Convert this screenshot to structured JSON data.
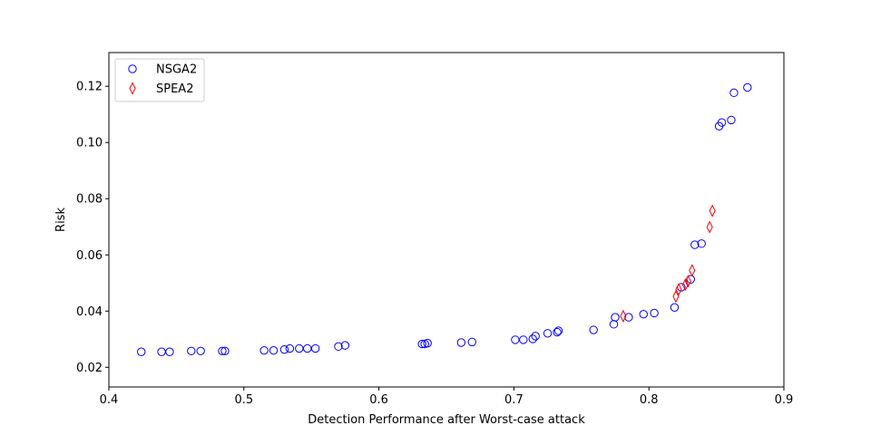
{
  "chart_data": {
    "type": "scatter",
    "title": "",
    "xlabel": "Detection Performance after Worst-case attack",
    "ylabel": "Risk",
    "xlim": [
      0.4,
      0.9
    ],
    "ylim": [
      0.013,
      0.132
    ],
    "xticks": [
      0.4,
      0.5,
      0.6,
      0.7,
      0.8,
      0.9
    ],
    "xtick_labels": [
      "0.4",
      "0.5",
      "0.6",
      "0.7",
      "0.8",
      "0.9"
    ],
    "yticks": [
      0.02,
      0.04,
      0.06,
      0.08,
      0.1,
      0.12
    ],
    "ytick_labels": [
      "0.02",
      "0.04",
      "0.06",
      "0.08",
      "0.10",
      "0.12"
    ],
    "grid": false,
    "legend_position": "top-left",
    "series": [
      {
        "name": "NSGA2",
        "marker": "circle",
        "color": "#0000ff",
        "x": [
          0.424,
          0.439,
          0.445,
          0.461,
          0.468,
          0.484,
          0.486,
          0.515,
          0.522,
          0.53,
          0.534,
          0.541,
          0.547,
          0.553,
          0.57,
          0.575,
          0.632,
          0.634,
          0.636,
          0.661,
          0.669,
          0.701,
          0.707,
          0.714,
          0.716,
          0.725,
          0.732,
          0.733,
          0.759,
          0.774,
          0.775,
          0.785,
          0.796,
          0.804,
          0.819,
          0.824,
          0.831,
          0.834,
          0.839,
          0.852,
          0.854,
          0.861,
          0.863,
          0.873
        ],
        "y": [
          0.0255,
          0.0255,
          0.0255,
          0.0258,
          0.0258,
          0.0258,
          0.0258,
          0.026,
          0.026,
          0.0263,
          0.0267,
          0.0267,
          0.0267,
          0.0267,
          0.0274,
          0.0278,
          0.0283,
          0.0283,
          0.0286,
          0.0288,
          0.029,
          0.0298,
          0.0298,
          0.0301,
          0.0311,
          0.0321,
          0.0325,
          0.033,
          0.0333,
          0.0353,
          0.0378,
          0.0378,
          0.0389,
          0.0393,
          0.0413,
          0.0485,
          0.0513,
          0.0636,
          0.064,
          0.1058,
          0.1071,
          0.108,
          0.1177,
          0.1196
        ]
      },
      {
        "name": "SPEA2",
        "marker": "thin_diamond",
        "color": "#ff0000",
        "x": [
          0.781,
          0.82,
          0.822,
          0.827,
          0.829,
          0.832,
          0.845,
          0.847
        ],
        "y": [
          0.0382,
          0.0452,
          0.0477,
          0.0494,
          0.0506,
          0.0545,
          0.0699,
          0.0757
        ]
      }
    ]
  }
}
